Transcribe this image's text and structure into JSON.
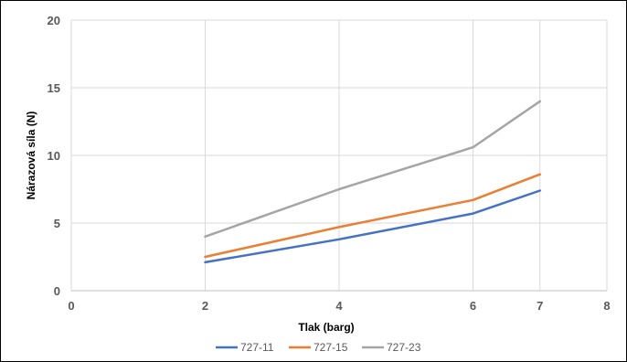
{
  "chart_data": {
    "type": "line",
    "xlabel": "Tlak (barg)",
    "ylabel": "Nárazová síla (N)",
    "xlim": [
      0,
      8
    ],
    "ylim": [
      0,
      20
    ],
    "xticks": [
      "0",
      "2",
      "4",
      "6",
      "7",
      "8"
    ],
    "xtick_values": [
      0,
      2,
      4,
      6,
      7,
      8
    ],
    "yticks": [
      "0",
      "5",
      "10",
      "15",
      "20"
    ],
    "ytick_values": [
      0,
      5,
      10,
      15,
      20
    ],
    "grid": true,
    "legend_position": "bottom",
    "series": [
      {
        "name": "727-11",
        "color": "#4472c4",
        "x": [
          2,
          4,
          6,
          7
        ],
        "y": [
          2.1,
          3.8,
          5.7,
          7.4
        ]
      },
      {
        "name": "727-15",
        "color": "#ed7d31",
        "x": [
          2,
          4,
          6,
          7
        ],
        "y": [
          2.5,
          4.7,
          6.7,
          8.6
        ]
      },
      {
        "name": "727-23",
        "color": "#a5a5a5",
        "x": [
          2,
          4,
          6,
          7
        ],
        "y": [
          4.0,
          7.5,
          10.6,
          14.0
        ]
      }
    ]
  }
}
